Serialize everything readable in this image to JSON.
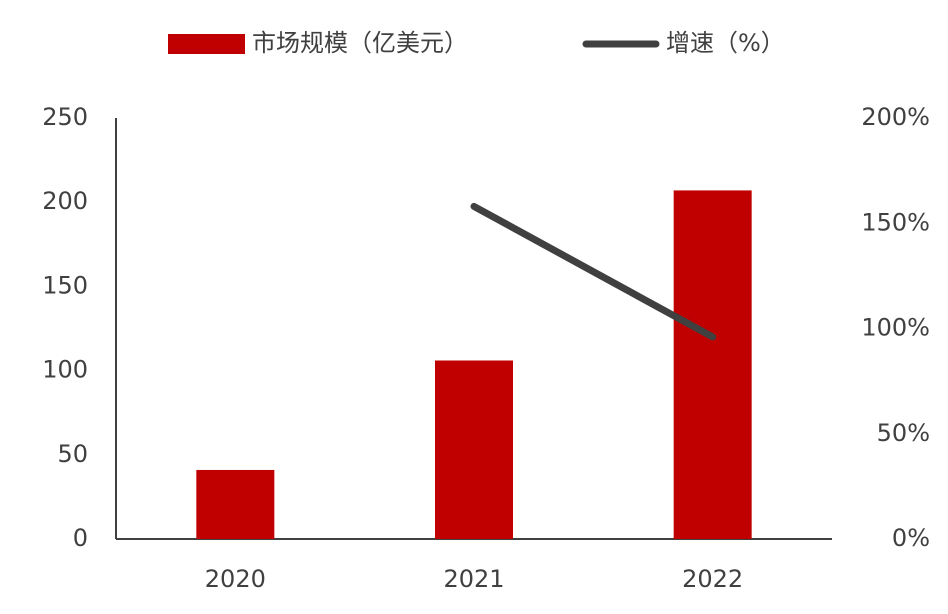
{
  "chart_data": {
    "type": "bar",
    "categories": [
      "2020",
      "2021",
      "2022"
    ],
    "series": [
      {
        "name": "市场规模（亿美元）",
        "type": "bar",
        "color": "#c00000",
        "values": [
          41,
          106,
          207
        ]
      },
      {
        "name": "增速（%）",
        "type": "line",
        "axis": "y2",
        "color": "#404040",
        "values": [
          null,
          158,
          96
        ]
      }
    ],
    "ylim": [
      0,
      250
    ],
    "yticks": [
      0,
      50,
      100,
      150,
      200,
      250
    ],
    "y2lim": [
      0,
      200
    ],
    "y2ticks": [
      {
        "value": 0,
        "label": "0%"
      },
      {
        "value": 50,
        "label": "50%"
      },
      {
        "value": 100,
        "label": "100%"
      },
      {
        "value": 150,
        "label": "150%"
      },
      {
        "value": 200,
        "label": "200%"
      }
    ],
    "grid": false,
    "legend": "top"
  }
}
